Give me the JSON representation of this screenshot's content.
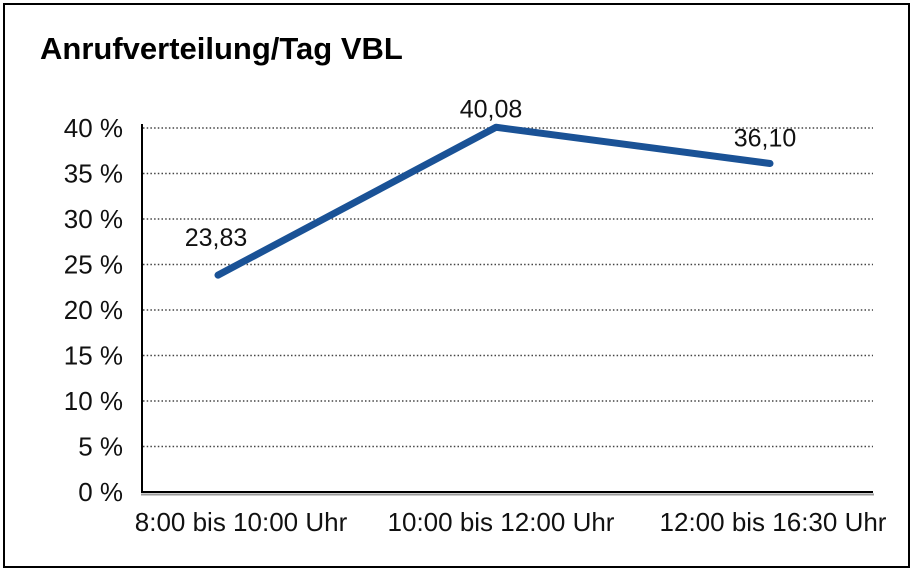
{
  "frame": {
    "border_color": "#000000",
    "background_color": "#ffffff"
  },
  "chart_data": {
    "type": "line",
    "title": "Anrufverteilung/Tag VBL",
    "categories": [
      "8:00 bis 10:00 Uhr",
      "10:00 bis 12:00 Uhr",
      "12:00 bis 16:30 Uhr"
    ],
    "values": [
      23.83,
      40.08,
      36.1
    ],
    "point_labels": [
      "23,83",
      "40,08",
      "36,10"
    ],
    "y_ticks": [
      0,
      5,
      10,
      15,
      20,
      25,
      30,
      35,
      40
    ],
    "y_tick_labels": [
      "0 %",
      "5 %",
      "10 %",
      "15 %",
      "20 %",
      "25 %",
      "30 %",
      "35 %",
      "40 %"
    ],
    "ylim": [
      0,
      40
    ],
    "xlabel": "",
    "ylabel": "",
    "grid": "horizontal-dotted",
    "legend": "none",
    "series_color": "#1a5296",
    "axis_color": "#000000",
    "axis_shadow_color": "#9b9b9b",
    "gridline_color": "#444444"
  }
}
